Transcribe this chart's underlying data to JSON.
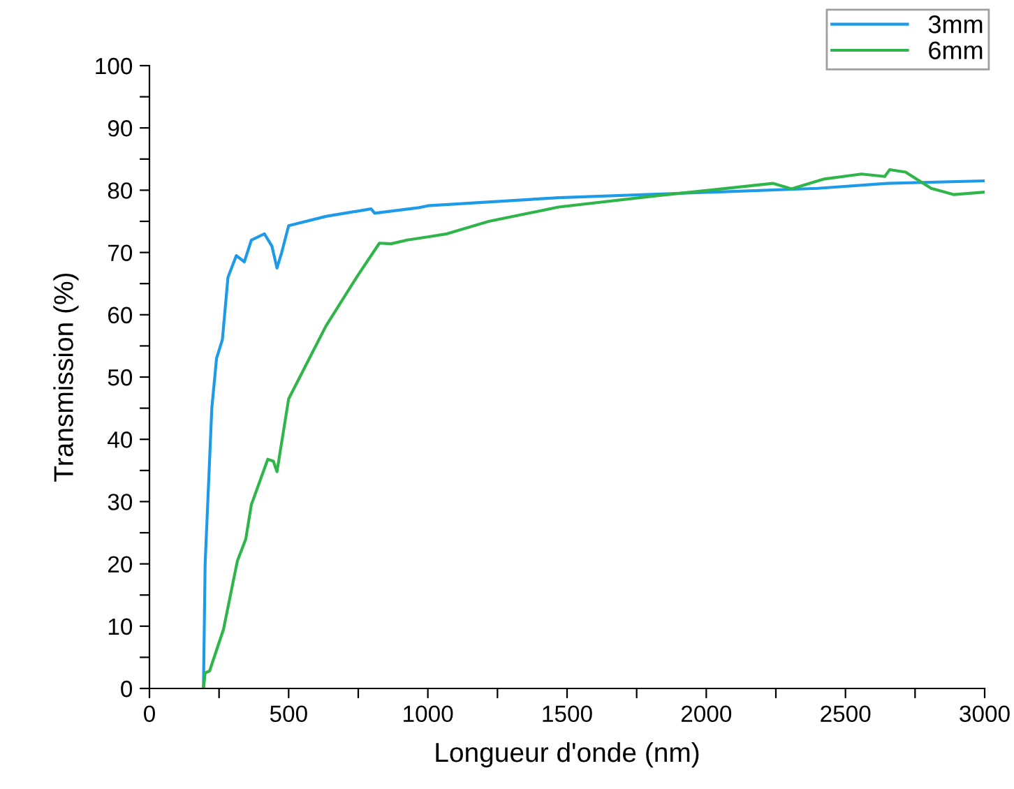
{
  "chart_data": {
    "type": "line",
    "xlabel": "Longueur d'onde (nm)",
    "ylabel": "Transmission (%)",
    "xlim": [
      0,
      3000
    ],
    "ylim": [
      0,
      100
    ],
    "xticks": [
      0,
      {
        "value": 250,
        "label": null
      },
      500,
      {
        "value": 750,
        "label": null
      },
      1000,
      {
        "value": 1250,
        "label": null
      },
      1500,
      {
        "value": 1750,
        "label": null
      },
      2000,
      {
        "value": 2250,
        "label": null
      },
      2500,
      {
        "value": 2750,
        "label": null
      },
      3000
    ],
    "yticks": [
      0,
      {
        "value": 5,
        "label": null
      },
      10,
      {
        "value": 15,
        "label": null
      },
      20,
      {
        "value": 25,
        "label": null
      },
      30,
      {
        "value": 35,
        "label": null
      },
      40,
      {
        "value": 45,
        "label": null
      },
      50,
      {
        "value": 55,
        "label": null
      },
      60,
      {
        "value": 65,
        "label": null
      },
      70,
      {
        "value": 75,
        "label": null
      },
      80,
      {
        "value": 85,
        "label": null
      },
      90,
      {
        "value": 95,
        "label": null
      },
      100
    ],
    "grid": false,
    "legend": "top right",
    "marker": "none",
    "line_style": "solid",
    "series": [
      {
        "name": "3mm",
        "color": "#1e9be8",
        "x": [
          194,
          200,
          224,
          241,
          262,
          282,
          312,
          341,
          366,
          413,
          440,
          458,
          475,
          500,
          634,
          796,
          809,
          968,
          1000,
          1470,
          2400,
          2650,
          3000
        ],
        "values": [
          0,
          20,
          45,
          53,
          56,
          66,
          69.5,
          68.5,
          72,
          73,
          71,
          67.5,
          70,
          74.3,
          75.8,
          77,
          76.3,
          77.2,
          77.5,
          78.8,
          80.3,
          81.1,
          81.5
        ]
      },
      {
        "name": "6mm",
        "color": "#2fb54a",
        "x": [
          194,
          200,
          216,
          266,
          316,
          346,
          366,
          425,
          445,
          458,
          500,
          634,
          751,
          826,
          868,
          926,
          1000,
          1069,
          1219,
          1470,
          1821,
          2239,
          2306,
          2424,
          2558,
          2641,
          2659,
          2716,
          2808,
          2890,
          3000
        ],
        "values": [
          0,
          2.5,
          2.8,
          9.5,
          20.5,
          24,
          29.5,
          36.8,
          36.5,
          34.8,
          46.5,
          58.2,
          66.5,
          71.5,
          71.4,
          72,
          72.5,
          73,
          75,
          77.3,
          79.1,
          81.1,
          80.2,
          81.8,
          82.6,
          82.2,
          83.3,
          82.9,
          80.3,
          79.3,
          79.7
        ]
      }
    ]
  }
}
